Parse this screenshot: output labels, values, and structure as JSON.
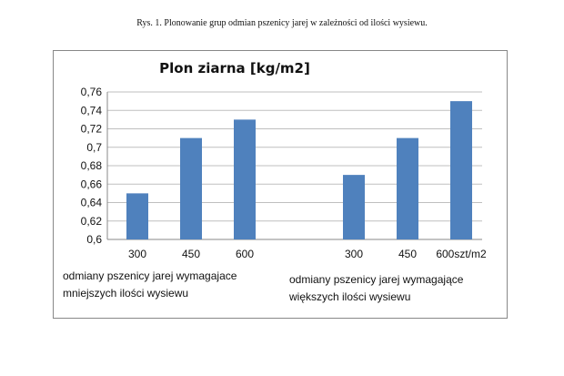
{
  "caption": "Rys. 1. Plonowanie grup odmian pszenicy jarej w zależności od ilości wysiewu.",
  "chart_data": {
    "type": "bar",
    "title": "Plon ziarna  [kg/m2]",
    "categories": [
      "300",
      "450",
      "600",
      "300",
      "450",
      "600szt/m2"
    ],
    "values": [
      0.65,
      0.71,
      0.73,
      0.67,
      0.71,
      0.75
    ],
    "groups": [
      {
        "label_lines": [
          "odmiany pszenicy jarej wymagajace",
          "mniejszych ilości wysiewu"
        ],
        "category_indices": [
          0,
          1,
          2
        ]
      },
      {
        "label_lines": [
          "odmiany pszenicy jarej wymagające",
          "większych ilości wysiewu"
        ],
        "category_indices": [
          3,
          4,
          5
        ]
      }
    ],
    "ylim": [
      0.6,
      0.76
    ],
    "yticks": [
      0.6,
      0.62,
      0.64,
      0.66,
      0.68,
      0.7,
      0.72,
      0.74,
      0.76
    ],
    "ytick_labels": [
      "0,6",
      "0,62",
      "0,64",
      "0,66",
      "0,68",
      "0,7",
      "0,72",
      "0,74",
      "0,76"
    ],
    "grid": true,
    "bar_color": "#4f81bd",
    "grid_color": "#bfbfbf"
  }
}
